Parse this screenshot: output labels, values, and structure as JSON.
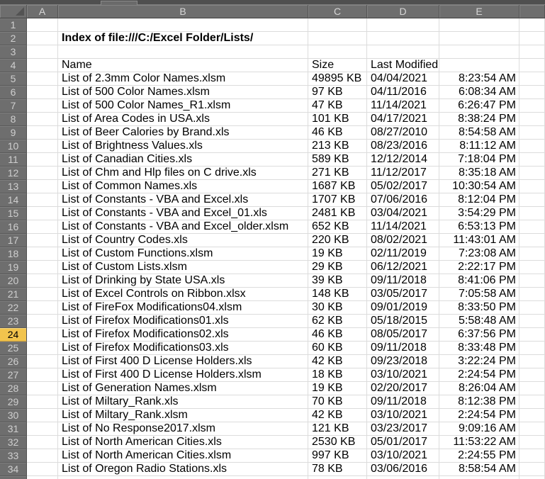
{
  "sheet": {
    "columns": [
      "",
      "A",
      "B",
      "C",
      "D",
      "E",
      ""
    ],
    "row_labels": [
      "1",
      "2",
      "3",
      "4",
      "5",
      "6",
      "7",
      "8",
      "9",
      "10",
      "11",
      "12",
      "13",
      "14",
      "15",
      "16",
      "17",
      "18",
      "19",
      "20",
      "21",
      "22",
      "23",
      "24",
      "25",
      "26",
      "27",
      "28",
      "29",
      "30",
      "31",
      "32",
      "33",
      "34",
      ""
    ],
    "selected_row": 24,
    "title_cell": {
      "row": 2,
      "column": "B",
      "text": "Index of file:///C:/Excel Folder/Lists/"
    },
    "header_row": {
      "row": 4,
      "name": "Name",
      "size": "Size",
      "last_modified": "Last Modified"
    },
    "files_start_row": 5,
    "files": [
      {
        "row": 5,
        "name": "List of 2.3mm Color Names.xlsm",
        "size": "49895 KB",
        "date": "04/04/2021",
        "time": "8:23:54 AM"
      },
      {
        "row": 6,
        "name": "List of 500 Color Names.xlsm",
        "size": "97 KB",
        "date": "04/11/2016",
        "time": "6:08:34 AM"
      },
      {
        "row": 7,
        "name": "List of 500 Color Names_R1.xlsm",
        "size": "47 KB",
        "date": "11/14/2021",
        "time": "6:26:47 PM"
      },
      {
        "row": 8,
        "name": "List of Area Codes in USA.xls",
        "size": "101 KB",
        "date": "04/17/2021",
        "time": "8:38:24 PM"
      },
      {
        "row": 9,
        "name": "List of Beer Calories by Brand.xls",
        "size": "46 KB",
        "date": "08/27/2010",
        "time": "8:54:58 AM"
      },
      {
        "row": 10,
        "name": "List of Brightness Values.xls",
        "size": "213 KB",
        "date": "08/23/2016",
        "time": "8:11:12 AM"
      },
      {
        "row": 11,
        "name": "List of Canadian Cities.xls",
        "size": "589 KB",
        "date": "12/12/2014",
        "time": "7:18:04 PM"
      },
      {
        "row": 12,
        "name": "List of Chm and Hlp files on C drive.xls",
        "size": "271 KB",
        "date": "11/12/2017",
        "time": "8:35:18 AM"
      },
      {
        "row": 13,
        "name": "List of Common Names.xls",
        "size": "1687 KB",
        "date": "05/02/2017",
        "time": "10:30:54 AM"
      },
      {
        "row": 14,
        "name": "List of Constants - VBA and Excel.xls",
        "size": "1707 KB",
        "date": "07/06/2016",
        "time": "8:12:04 PM"
      },
      {
        "row": 15,
        "name": "List of Constants - VBA and Excel_01.xls",
        "size": "2481 KB",
        "date": "03/04/2021",
        "time": "3:54:29 PM"
      },
      {
        "row": 16,
        "name": "List of Constants - VBA and Excel_older.xlsm",
        "size": "652 KB",
        "date": "11/14/2021",
        "time": "6:53:13 PM"
      },
      {
        "row": 17,
        "name": "List of Country Codes.xls",
        "size": "220 KB",
        "date": "08/02/2021",
        "time": "11:43:01 AM"
      },
      {
        "row": 18,
        "name": "List of Custom Functions.xlsm",
        "size": "19 KB",
        "date": "02/11/2019",
        "time": "7:23:08 AM"
      },
      {
        "row": 19,
        "name": "List of Custom Lists.xlsm",
        "size": "29 KB",
        "date": "06/12/2021",
        "time": "2:22:17 PM"
      },
      {
        "row": 20,
        "name": "List of Drinking by State USA.xls",
        "size": "39 KB",
        "date": "09/11/2018",
        "time": "8:41:06 PM"
      },
      {
        "row": 21,
        "name": "List of Excel Controls on Ribbon.xlsx",
        "size": "148 KB",
        "date": "03/05/2017",
        "time": "7:05:58 AM"
      },
      {
        "row": 22,
        "name": "List of FireFox Modifications04.xlsm",
        "size": "30 KB",
        "date": "09/01/2019",
        "time": "8:33:50 PM"
      },
      {
        "row": 23,
        "name": "List of Firefox Modifications01.xls",
        "size": "62 KB",
        "date": "05/18/2015",
        "time": "5:58:48 AM"
      },
      {
        "row": 24,
        "name": "List of Firefox Modifications02.xls",
        "size": "46 KB",
        "date": "08/05/2017",
        "time": "6:37:56 PM"
      },
      {
        "row": 25,
        "name": "List of Firefox Modifications03.xls",
        "size": "60 KB",
        "date": "09/11/2018",
        "time": "8:33:48 PM"
      },
      {
        "row": 26,
        "name": "List of First 400 D License Holders.xls",
        "size": "42 KB",
        "date": "09/23/2018",
        "time": "3:22:24 PM"
      },
      {
        "row": 27,
        "name": "List of First 400 D License Holders.xlsm",
        "size": "18 KB",
        "date": "03/10/2021",
        "time": "2:24:54 PM"
      },
      {
        "row": 28,
        "name": "List of Generation Names.xlsm",
        "size": "19 KB",
        "date": "02/20/2017",
        "time": "8:26:04 AM"
      },
      {
        "row": 29,
        "name": "List of Miltary_Rank.xls",
        "size": "70 KB",
        "date": "09/11/2018",
        "time": "8:12:38 PM"
      },
      {
        "row": 30,
        "name": "List of Miltary_Rank.xlsm",
        "size": "42 KB",
        "date": "03/10/2021",
        "time": "2:24:54 PM"
      },
      {
        "row": 31,
        "name": "List of No Response2017.xlsm",
        "size": "121 KB",
        "date": "03/23/2017",
        "time": "9:09:16 AM"
      },
      {
        "row": 32,
        "name": "List of North American Cities.xls",
        "size": "2530 KB",
        "date": "05/01/2017",
        "time": "11:53:22 AM"
      },
      {
        "row": 33,
        "name": "List of North American Cities.xlsm",
        "size": "997 KB",
        "date": "03/10/2021",
        "time": "2:24:55 PM"
      },
      {
        "row": 34,
        "name": "List of Oregon Radio Stations.xls",
        "size": "78 KB",
        "date": "03/06/2016",
        "time": "8:58:54 AM"
      }
    ]
  },
  "colors": {
    "header_bg": "#6e6e6e",
    "header_text": "#d6d6d6",
    "selected_row_header_bg": "#f2c44d",
    "gridline": "#dcdcdc",
    "top_strip": "#4f4f4f",
    "cell_bg": "#ffffff",
    "cell_text": "#000000"
  }
}
